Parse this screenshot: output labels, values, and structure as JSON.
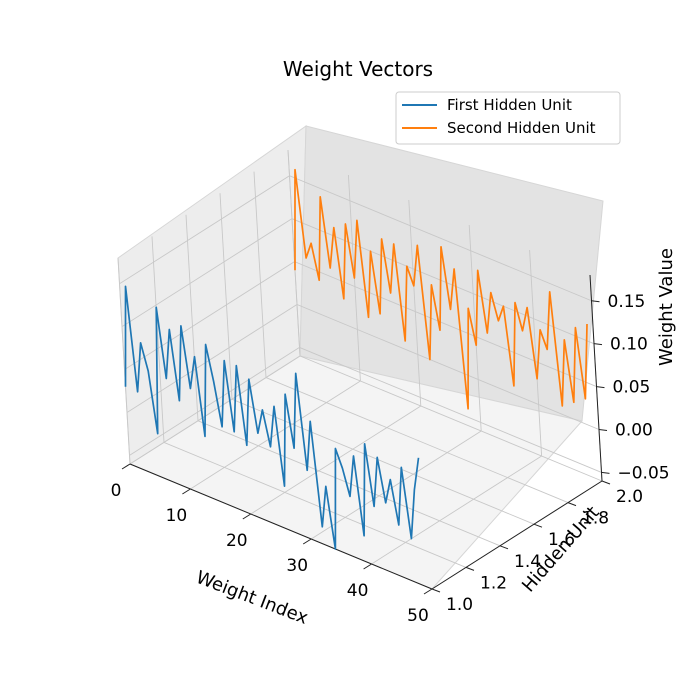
{
  "chart_data": {
    "type": "line",
    "projection": "3d",
    "title": "Weight Vectors",
    "xlabel": "Weight Index",
    "ylabel": "Hidden Unit",
    "zlabel": "Weight Value",
    "xlim": [
      0,
      50
    ],
    "ylim": [
      1.0,
      2.0
    ],
    "zlim": [
      -0.06,
      0.18
    ],
    "x_ticks": [
      "0",
      "10",
      "20",
      "30",
      "40",
      "50"
    ],
    "y_ticks": [
      "1.0",
      "1.2",
      "1.4",
      "1.6",
      "1.8",
      "2.0"
    ],
    "z_ticks": [
      "−0.05",
      "0.00",
      "0.05",
      "0.10",
      "0.15"
    ],
    "grid": true,
    "legend_position": "top-right",
    "x": [
      0,
      1,
      2,
      3,
      4,
      5,
      6,
      7,
      8,
      9,
      10,
      11,
      12,
      13,
      14,
      15,
      16,
      17,
      18,
      19,
      20,
      21,
      22,
      23,
      24,
      25,
      26,
      27,
      28,
      29,
      30,
      31,
      32,
      33,
      34,
      35,
      36,
      37,
      38,
      39,
      40,
      41,
      42,
      43,
      44,
      45,
      46,
      47,
      48,
      49
    ],
    "series": [
      {
        "name": "First Hidden Unit",
        "color": "#1f77b4",
        "hidden_unit": 1.0,
        "values": [
          0.03,
          0.15,
          0.03,
          0.09,
          0.06,
          -0.01,
          0.14,
          0.06,
          0.12,
          0.04,
          0.13,
          0.06,
          0.1,
          0.01,
          0.12,
          0.08,
          0.03,
          0.11,
          0.03,
          0.11,
          0.02,
          0.1,
          0.04,
          0.07,
          0.03,
          0.08,
          -0.01,
          0.1,
          0.04,
          0.13,
          0.02,
          0.08,
          -0.04,
          0.01,
          -0.06,
          0.06,
          0.04,
          0.01,
          0.06,
          -0.03,
          0.08,
          0.01,
          0.07,
          0.02,
          0.05,
          0.0,
          0.07,
          -0.01,
          0.05,
          0.09
        ]
      },
      {
        "name": "Second Hidden Unit",
        "color": "#ff7f0e",
        "hidden_unit": 2.0,
        "values": [
          0.04,
          0.16,
          0.06,
          0.08,
          0.04,
          0.14,
          0.06,
          0.11,
          0.03,
          0.12,
          0.06,
          0.13,
          0.02,
          0.1,
          0.03,
          0.12,
          0.06,
          0.12,
          0.01,
          0.1,
          0.08,
          0.13,
          0.0,
          0.09,
          0.04,
          0.14,
          0.07,
          0.12,
          -0.04,
          0.08,
          0.04,
          0.13,
          0.06,
          0.11,
          0.08,
          0.1,
          0.01,
          0.11,
          0.08,
          0.11,
          0.03,
          0.09,
          0.07,
          0.14,
          0.01,
          0.09,
          0.02,
          0.11,
          0.03,
          0.12
        ]
      }
    ]
  }
}
